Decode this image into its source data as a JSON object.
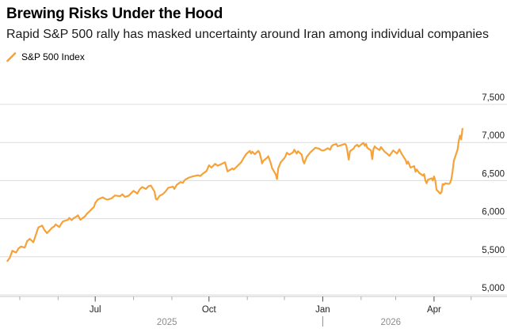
{
  "header": {
    "title": "Brewing Risks Under the Hood",
    "subtitle": "Rapid S&P 500 rally has masked uncertainty around Iran among individual companies"
  },
  "legend": {
    "series_label": "S&P 500 Index",
    "marker": "orange-slash"
  },
  "colors": {
    "line": "#F5A23A",
    "grid": "#DCDCDC",
    "axis": "#C8C8C8",
    "tick_minor": "#ABABAB",
    "tick_major": "#4D4D4D",
    "label": "#1F1F1F",
    "muted": "#8C8C8C",
    "background": "#FFFFFF"
  },
  "chart_data": {
    "type": "line",
    "title": "Brewing Risks Under the Hood",
    "series_name": "S&P 500 Index",
    "x_domain": [
      "2025-04-15",
      "2026-05-30"
    ],
    "y_domain": [
      5000,
      7500
    ],
    "grid": true,
    "legend_position": "top-left",
    "y_ticks": [
      {
        "value": 5000,
        "label": "5,000"
      },
      {
        "value": 5500,
        "label": "5,500"
      },
      {
        "value": 6000,
        "label": "6,000"
      },
      {
        "value": 6500,
        "label": "6,500"
      },
      {
        "value": 7000,
        "label": "7,000"
      },
      {
        "value": 7500,
        "label": "7,500"
      }
    ],
    "x_ticks": [
      {
        "date": "2025-05-01",
        "label": "",
        "major": false
      },
      {
        "date": "2025-06-01",
        "label": "",
        "major": false
      },
      {
        "date": "2025-07-01",
        "label": "Jul",
        "major": true
      },
      {
        "date": "2025-08-01",
        "label": "",
        "major": false
      },
      {
        "date": "2025-09-01",
        "label": "",
        "major": false
      },
      {
        "date": "2025-10-01",
        "label": "Oct",
        "major": true
      },
      {
        "date": "2025-11-01",
        "label": "",
        "major": false
      },
      {
        "date": "2025-12-01",
        "label": "",
        "major": false
      },
      {
        "date": "2026-01-01",
        "label": "Jan",
        "major": true
      },
      {
        "date": "2026-02-01",
        "label": "",
        "major": false
      },
      {
        "date": "2026-03-01",
        "label": "",
        "major": false
      },
      {
        "date": "2026-04-01",
        "label": "Apr",
        "major": true
      },
      {
        "date": "2026-05-01",
        "label": "",
        "major": false
      }
    ],
    "year_labels": [
      {
        "label": "2025",
        "date": "2025-08-28"
      },
      {
        "label": "2026",
        "date": "2026-02-25"
      }
    ],
    "year_separator_date": "2026-01-01",
    "points": [
      [
        "2025-04-21",
        5445
      ],
      [
        "2025-04-23",
        5490
      ],
      [
        "2025-04-25",
        5580
      ],
      [
        "2025-04-28",
        5555
      ],
      [
        "2025-04-30",
        5610
      ],
      [
        "2025-05-02",
        5635
      ],
      [
        "2025-05-05",
        5620
      ],
      [
        "2025-05-07",
        5705
      ],
      [
        "2025-05-09",
        5735
      ],
      [
        "2025-05-12",
        5690
      ],
      [
        "2025-05-14",
        5790
      ],
      [
        "2025-05-16",
        5885
      ],
      [
        "2025-05-19",
        5910
      ],
      [
        "2025-05-21",
        5850
      ],
      [
        "2025-05-23",
        5810
      ],
      [
        "2025-05-27",
        5880
      ],
      [
        "2025-05-29",
        5900
      ],
      [
        "2025-05-30",
        5925
      ],
      [
        "2025-06-02",
        5890
      ],
      [
        "2025-06-04",
        5945
      ],
      [
        "2025-06-05",
        5965
      ],
      [
        "2025-06-09",
        5985
      ],
      [
        "2025-06-10",
        6010
      ],
      [
        "2025-06-12",
        5980
      ],
      [
        "2025-06-13",
        6000
      ],
      [
        "2025-06-16",
        6030
      ],
      [
        "2025-06-17",
        6045
      ],
      [
        "2025-06-19",
        5985
      ],
      [
        "2025-06-23",
        6035
      ],
      [
        "2025-06-24",
        6060
      ],
      [
        "2025-06-26",
        6090
      ],
      [
        "2025-06-30",
        6155
      ],
      [
        "2025-07-01",
        6205
      ],
      [
        "2025-07-03",
        6250
      ],
      [
        "2025-07-07",
        6280
      ],
      [
        "2025-07-09",
        6260
      ],
      [
        "2025-07-11",
        6250
      ],
      [
        "2025-07-14",
        6265
      ],
      [
        "2025-07-17",
        6305
      ],
      [
        "2025-07-21",
        6295
      ],
      [
        "2025-07-23",
        6320
      ],
      [
        "2025-07-25",
        6285
      ],
      [
        "2025-07-28",
        6300
      ],
      [
        "2025-07-31",
        6350
      ],
      [
        "2025-08-01",
        6365
      ],
      [
        "2025-08-04",
        6330
      ],
      [
        "2025-08-06",
        6385
      ],
      [
        "2025-08-08",
        6415
      ],
      [
        "2025-08-11",
        6390
      ],
      [
        "2025-08-13",
        6425
      ],
      [
        "2025-08-15",
        6435
      ],
      [
        "2025-08-18",
        6355
      ],
      [
        "2025-08-19",
        6260
      ],
      [
        "2025-08-20",
        6250
      ],
      [
        "2025-08-22",
        6300
      ],
      [
        "2025-08-25",
        6325
      ],
      [
        "2025-08-27",
        6360
      ],
      [
        "2025-08-29",
        6405
      ],
      [
        "2025-09-02",
        6420
      ],
      [
        "2025-09-03",
        6390
      ],
      [
        "2025-09-05",
        6445
      ],
      [
        "2025-09-08",
        6480
      ],
      [
        "2025-09-10",
        6470
      ],
      [
        "2025-09-11",
        6500
      ],
      [
        "2025-09-12",
        6515
      ],
      [
        "2025-09-15",
        6540
      ],
      [
        "2025-09-18",
        6555
      ],
      [
        "2025-09-22",
        6570
      ],
      [
        "2025-09-24",
        6560
      ],
      [
        "2025-09-26",
        6590
      ],
      [
        "2025-09-29",
        6625
      ],
      [
        "2025-09-30",
        6660
      ],
      [
        "2025-10-01",
        6700
      ],
      [
        "2025-10-03",
        6670
      ],
      [
        "2025-10-06",
        6720
      ],
      [
        "2025-10-08",
        6695
      ],
      [
        "2025-10-10",
        6710
      ],
      [
        "2025-10-14",
        6740
      ],
      [
        "2025-10-16",
        6620
      ],
      [
        "2025-10-20",
        6660
      ],
      [
        "2025-10-21",
        6645
      ],
      [
        "2025-10-23",
        6675
      ],
      [
        "2025-10-27",
        6740
      ],
      [
        "2025-10-29",
        6795
      ],
      [
        "2025-10-31",
        6845
      ],
      [
        "2025-11-03",
        6890
      ],
      [
        "2025-11-04",
        6855
      ],
      [
        "2025-11-05",
        6880
      ],
      [
        "2025-11-07",
        6845
      ],
      [
        "2025-11-10",
        6890
      ],
      [
        "2025-11-11",
        6860
      ],
      [
        "2025-11-12",
        6795
      ],
      [
        "2025-11-13",
        6725
      ],
      [
        "2025-11-14",
        6760
      ],
      [
        "2025-11-17",
        6800
      ],
      [
        "2025-11-18",
        6820
      ],
      [
        "2025-11-20",
        6725
      ],
      [
        "2025-11-21",
        6665
      ],
      [
        "2025-11-24",
        6580
      ],
      [
        "2025-11-25",
        6520
      ],
      [
        "2025-11-26",
        6660
      ],
      [
        "2025-11-28",
        6740
      ],
      [
        "2025-12-01",
        6795
      ],
      [
        "2025-12-02",
        6825
      ],
      [
        "2025-12-03",
        6865
      ],
      [
        "2025-12-05",
        6840
      ],
      [
        "2025-12-08",
        6870
      ],
      [
        "2025-12-09",
        6905
      ],
      [
        "2025-12-11",
        6855
      ],
      [
        "2025-12-12",
        6885
      ],
      [
        "2025-12-15",
        6840
      ],
      [
        "2025-12-16",
        6765
      ],
      [
        "2025-12-17",
        6725
      ],
      [
        "2025-12-19",
        6810
      ],
      [
        "2025-12-22",
        6870
      ],
      [
        "2025-12-24",
        6900
      ],
      [
        "2025-12-26",
        6930
      ],
      [
        "2025-12-29",
        6920
      ],
      [
        "2025-12-31",
        6895
      ],
      [
        "2026-01-02",
        6895
      ],
      [
        "2026-01-05",
        6925
      ],
      [
        "2026-01-07",
        6905
      ],
      [
        "2026-01-08",
        6945
      ],
      [
        "2026-01-09",
        6965
      ],
      [
        "2026-01-12",
        6980
      ],
      [
        "2026-01-13",
        6950
      ],
      [
        "2026-01-15",
        6960
      ],
      [
        "2026-01-19",
        6980
      ],
      [
        "2026-01-20",
        6960
      ],
      [
        "2026-01-21",
        6880
      ],
      [
        "2026-01-22",
        6775
      ],
      [
        "2026-01-23",
        6885
      ],
      [
        "2026-01-26",
        6920
      ],
      [
        "2026-01-27",
        6950
      ],
      [
        "2026-01-29",
        6970
      ],
      [
        "2026-01-30",
        6945
      ],
      [
        "2026-02-02",
        6985
      ],
      [
        "2026-02-03",
        6995
      ],
      [
        "2026-02-04",
        6955
      ],
      [
        "2026-02-05",
        6980
      ],
      [
        "2026-02-06",
        6930
      ],
      [
        "2026-02-09",
        6895
      ],
      [
        "2026-02-10",
        6780
      ],
      [
        "2026-02-11",
        6910
      ],
      [
        "2026-02-12",
        6950
      ],
      [
        "2026-02-13",
        6930
      ],
      [
        "2026-02-16",
        6900
      ],
      [
        "2026-02-17",
        6940
      ],
      [
        "2026-02-19",
        6900
      ],
      [
        "2026-02-20",
        6880
      ],
      [
        "2026-02-23",
        6840
      ],
      [
        "2026-02-24",
        6825
      ],
      [
        "2026-02-25",
        6850
      ],
      [
        "2026-02-27",
        6895
      ],
      [
        "2026-03-02",
        6855
      ],
      [
        "2026-03-03",
        6880
      ],
      [
        "2026-03-04",
        6910
      ],
      [
        "2026-03-06",
        6845
      ],
      [
        "2026-03-09",
        6770
      ],
      [
        "2026-03-10",
        6720
      ],
      [
        "2026-03-11",
        6750
      ],
      [
        "2026-03-13",
        6670
      ],
      [
        "2026-03-16",
        6690
      ],
      [
        "2026-03-17",
        6615
      ],
      [
        "2026-03-18",
        6645
      ],
      [
        "2026-03-20",
        6600
      ],
      [
        "2026-03-23",
        6565
      ],
      [
        "2026-03-24",
        6585
      ],
      [
        "2026-03-25",
        6500
      ],
      [
        "2026-03-26",
        6465
      ],
      [
        "2026-03-27",
        6510
      ],
      [
        "2026-03-30",
        6530
      ],
      [
        "2026-03-31",
        6500
      ],
      [
        "2026-04-01",
        6555
      ],
      [
        "2026-04-02",
        6500
      ],
      [
        "2026-04-03",
        6380
      ],
      [
        "2026-04-06",
        6330
      ],
      [
        "2026-04-07",
        6345
      ],
      [
        "2026-04-08",
        6455
      ],
      [
        "2026-04-09",
        6445
      ],
      [
        "2026-04-10",
        6465
      ],
      [
        "2026-04-13",
        6455
      ],
      [
        "2026-04-14",
        6470
      ],
      [
        "2026-04-15",
        6520
      ],
      [
        "2026-04-16",
        6620
      ],
      [
        "2026-04-17",
        6760
      ],
      [
        "2026-04-20",
        6905
      ],
      [
        "2026-04-21",
        7020
      ],
      [
        "2026-04-22",
        7090
      ],
      [
        "2026-04-23",
        7040
      ],
      [
        "2026-04-24",
        7180
      ]
    ]
  }
}
